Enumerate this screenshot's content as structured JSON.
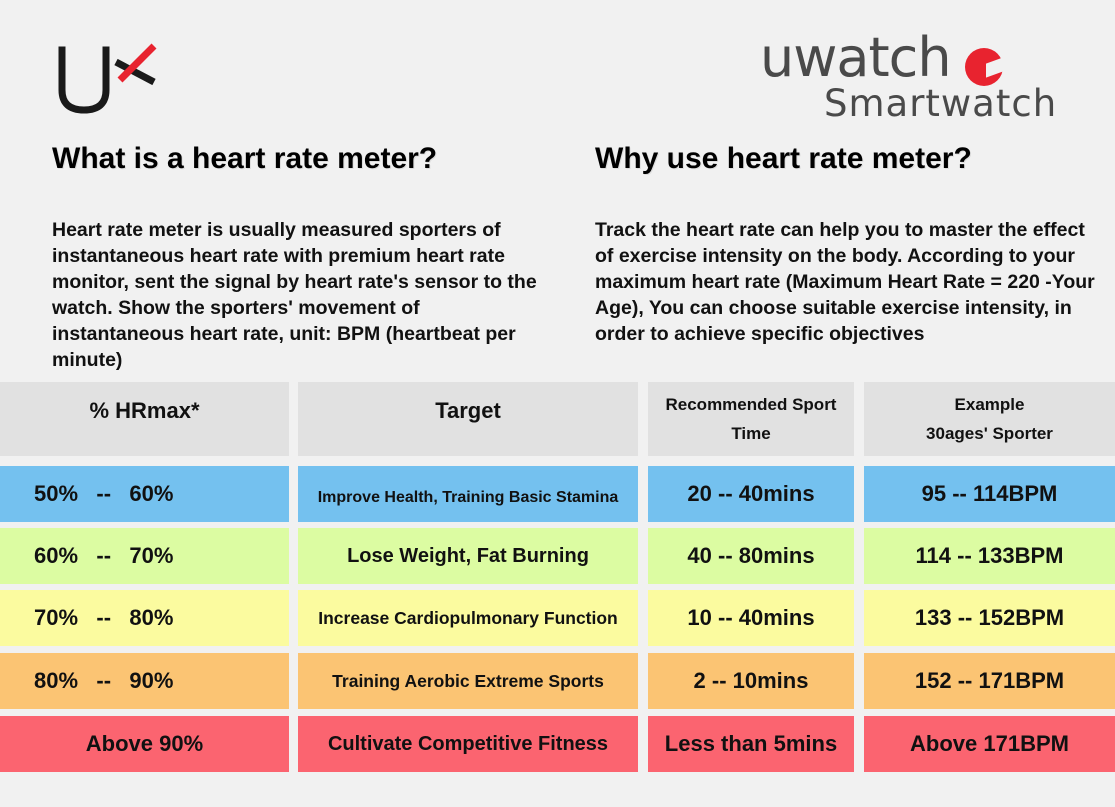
{
  "logos": {
    "left_icon": "ux-logo-icon",
    "brand_name": "uwatch",
    "brand_sub": "Smartwatch",
    "brand_color": "#e8232f"
  },
  "left": {
    "heading": "What is a heart rate meter?",
    "paragraph": "Heart rate meter is usually measured sporters of instantaneous heart rate with premium heart rate monitor, sent the signal by heart rate's sensor to the watch. Show the sporters' movement of instantaneous heart rate, unit: BPM (heartbeat per minute)"
  },
  "right": {
    "heading": "Why use heart rate meter?",
    "paragraph": "Track the heart rate can help you to master the effect of exercise intensity on the body. According to your maximum heart rate (Maximum Heart Rate = 220 -Your Age), You can choose suitable exercise intensity, in order to achieve specific objectives"
  },
  "table": {
    "headers": {
      "hrmax": "% HRmax*",
      "target": "Target",
      "time_line1": "Recommended Sport",
      "time_line2": "Time",
      "example_line1": "Example",
      "example_line2": "30ages' Sporter"
    },
    "rows": [
      {
        "hrmax": "50%   --   60%",
        "target": "Improve Health, Training Basic Stamina",
        "time": "20 -- 40mins",
        "example": "95 -- 114BPM",
        "color": "#74c1ef"
      },
      {
        "hrmax": "60%   --   70%",
        "target": "Lose Weight, Fat Burning",
        "time": "40 -- 80mins",
        "example": "114 -- 133BPM",
        "color": "#dcfca2"
      },
      {
        "hrmax": "70%   --   80%",
        "target": "Increase Cardiopulmonary Function",
        "time": "10 -- 40mins",
        "example": "133 -- 152BPM",
        "color": "#fbfb9f"
      },
      {
        "hrmax": "80%   --   90%",
        "target": "Training Aerobic Extreme Sports",
        "time": "2 -- 10mins",
        "example": "152 -- 171BPM",
        "color": "#fbc473"
      },
      {
        "hrmax": "Above 90%",
        "target": "Cultivate Competitive Fitness",
        "time": "Less than 5mins",
        "example": "Above 171BPM",
        "color": "#fb6470"
      }
    ]
  }
}
